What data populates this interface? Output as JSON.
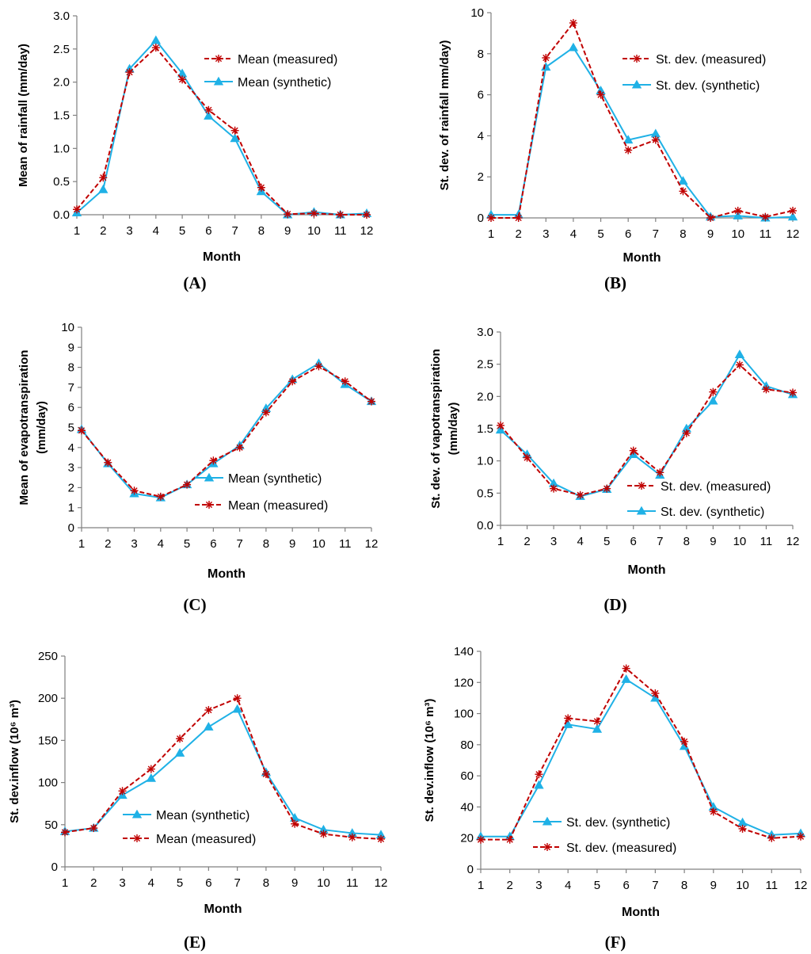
{
  "chart_data": [
    {
      "panel": "A",
      "panel_label": "(A)",
      "type": "line",
      "ylabel": "Mean of rainfall (mm/day)",
      "xlabel": "Month",
      "ylim": [
        0,
        3
      ],
      "yticks": [
        "0.0",
        "0.5",
        "1.0",
        "1.5",
        "2.0",
        "2.5",
        "3.0"
      ],
      "ytick_values": [
        0,
        0.5,
        1,
        1.5,
        2,
        2.5,
        3
      ],
      "x": [
        "1",
        "2",
        "3",
        "4",
        "5",
        "6",
        "7",
        "8",
        "9",
        "10",
        "11",
        "12"
      ],
      "legend_pos": "top-right",
      "series": [
        {
          "name": "Mean (measured)",
          "style": "measured",
          "values": [
            0.08,
            0.56,
            2.15,
            2.52,
            2.04,
            1.58,
            1.27,
            0.41,
            0.01,
            0.02,
            0.0,
            0.0
          ]
        },
        {
          "name": "Mean (synthetic)",
          "style": "synthetic",
          "values": [
            0.03,
            0.38,
            2.2,
            2.63,
            2.13,
            1.49,
            1.15,
            0.35,
            0.0,
            0.04,
            0.0,
            0.02
          ]
        }
      ]
    },
    {
      "panel": "B",
      "panel_label": "(B)",
      "type": "line",
      "ylabel": "St. dev. of rainfall mm/day)",
      "xlabel": "Month",
      "ylim": [
        0,
        10
      ],
      "yticks": [
        "0",
        "2",
        "4",
        "6",
        "8",
        "10"
      ],
      "ytick_values": [
        0,
        2,
        4,
        6,
        8,
        10
      ],
      "x": [
        "1",
        "2",
        "3",
        "4",
        "5",
        "6",
        "7",
        "8",
        "9",
        "10",
        "11",
        "12"
      ],
      "legend_pos": "top-right",
      "series": [
        {
          "name": "St. dev. (measured)",
          "style": "measured",
          "values": [
            0.0,
            0.0,
            7.8,
            9.5,
            6.0,
            3.3,
            3.8,
            1.3,
            0.0,
            0.35,
            0.05,
            0.35
          ]
        },
        {
          "name": "St. dev. (synthetic)",
          "style": "synthetic",
          "values": [
            0.15,
            0.15,
            7.35,
            8.3,
            6.2,
            3.8,
            4.1,
            1.8,
            0.05,
            0.1,
            0.0,
            0.05
          ]
        }
      ]
    },
    {
      "panel": "C",
      "panel_label": "(C)",
      "type": "line",
      "ylabel": "Mean of evapotranspiration (mm/day)",
      "ylabel_lines": [
        "Mean of evapotranspiration",
        "(mm/day)"
      ],
      "xlabel": "Month",
      "ylim": [
        0,
        10
      ],
      "yticks": [
        "0",
        "1",
        "2",
        "3",
        "4",
        "5",
        "6",
        "7",
        "8",
        "9",
        "10"
      ],
      "ytick_values": [
        0,
        1,
        2,
        3,
        4,
        5,
        6,
        7,
        8,
        9,
        10
      ],
      "x": [
        "1",
        "2",
        "3",
        "4",
        "5",
        "6",
        "7",
        "8",
        "9",
        "10",
        "11",
        "12"
      ],
      "legend_pos": "center-right",
      "series": [
        {
          "name": "Mean (synthetic)",
          "style": "synthetic",
          "values": [
            4.9,
            3.2,
            1.7,
            1.5,
            2.15,
            3.2,
            4.1,
            5.95,
            7.4,
            8.2,
            7.15,
            6.3
          ]
        },
        {
          "name": "Mean  (measured)",
          "style": "measured",
          "values": [
            4.85,
            3.25,
            1.85,
            1.55,
            2.15,
            3.35,
            4.0,
            5.75,
            7.3,
            8.05,
            7.3,
            6.3
          ]
        }
      ]
    },
    {
      "panel": "D",
      "panel_label": "(D)",
      "type": "line",
      "ylabel": "St. dev. of vapotranspiration (mm/day)",
      "ylabel_lines": [
        "St. dev. of vapotranspiration",
        "(mm/day)"
      ],
      "xlabel": "Month",
      "ylim": [
        0,
        3
      ],
      "yticks": [
        "0.0",
        "0.5",
        "1.0",
        "1.5",
        "2.0",
        "2.5",
        "3.0"
      ],
      "ytick_values": [
        0,
        0.5,
        1,
        1.5,
        2,
        2.5,
        3
      ],
      "x": [
        "1",
        "2",
        "3",
        "4",
        "5",
        "6",
        "7",
        "8",
        "9",
        "10",
        "11",
        "12"
      ],
      "legend_pos": "bottom-right",
      "series": [
        {
          "name": "St. dev. (measured)",
          "style": "measured",
          "values": [
            1.55,
            1.05,
            0.57,
            0.47,
            0.57,
            1.16,
            0.82,
            1.43,
            2.07,
            2.49,
            2.11,
            2.06
          ]
        },
        {
          "name": "St. dev. (synthetic)",
          "style": "synthetic",
          "values": [
            1.48,
            1.1,
            0.65,
            0.45,
            0.56,
            1.1,
            0.78,
            1.5,
            1.93,
            2.65,
            2.16,
            2.03
          ]
        }
      ]
    },
    {
      "panel": "E",
      "panel_label": "(E)",
      "type": "line",
      "ylabel": "St. dev.inflow (10⁶ m³)",
      "xlabel": "Month",
      "ylim": [
        0,
        250
      ],
      "yticks": [
        "0",
        "50",
        "100",
        "150",
        "200",
        "250"
      ],
      "ytick_values": [
        0,
        50,
        100,
        150,
        200,
        250
      ],
      "x": [
        "1",
        "2",
        "3",
        "4",
        "5",
        "6",
        "7",
        "8",
        "9",
        "10",
        "11",
        "12"
      ],
      "legend_pos": "bottom-center",
      "series": [
        {
          "name": "Mean (synthetic)",
          "style": "synthetic",
          "values": [
            42,
            46,
            85,
            105,
            135,
            166,
            187,
            112,
            58,
            44,
            40,
            38
          ]
        },
        {
          "name": "Mean  (measured)",
          "style": "measured",
          "values": [
            41,
            46,
            90,
            116,
            152,
            186,
            200,
            110,
            51,
            39,
            35,
            33
          ]
        }
      ]
    },
    {
      "panel": "F",
      "panel_label": "(F)",
      "type": "line",
      "ylabel": "St. dev.inflow (10⁶ m³)",
      "xlabel": "Month",
      "ylim": [
        0,
        140
      ],
      "yticks": [
        "0",
        "20",
        "40",
        "60",
        "80",
        "100",
        "120",
        "140"
      ],
      "ytick_values": [
        0,
        20,
        40,
        60,
        80,
        100,
        120,
        140
      ],
      "x": [
        "1",
        "2",
        "3",
        "4",
        "5",
        "6",
        "7",
        "8",
        "9",
        "10",
        "11",
        "12"
      ],
      "legend_pos": "bottom-center",
      "series": [
        {
          "name": "St. dev. (synthetic)",
          "style": "synthetic",
          "values": [
            21,
            21,
            54,
            93,
            90,
            122,
            110,
            79,
            40,
            30,
            22,
            23
          ]
        },
        {
          "name": "St. dev. (measured)",
          "style": "measured",
          "values": [
            19,
            19,
            61,
            97,
            95,
            129,
            113,
            82,
            37,
            26,
            20,
            21
          ]
        }
      ]
    }
  ],
  "colors": {
    "measured": "#c00000",
    "synthetic": "#1fb1e6",
    "axis": "#808080",
    "text": "#000000"
  },
  "icons": {
    "measured_marker": "asterisk-marker-icon",
    "synthetic_marker": "triangle-marker-icon"
  }
}
